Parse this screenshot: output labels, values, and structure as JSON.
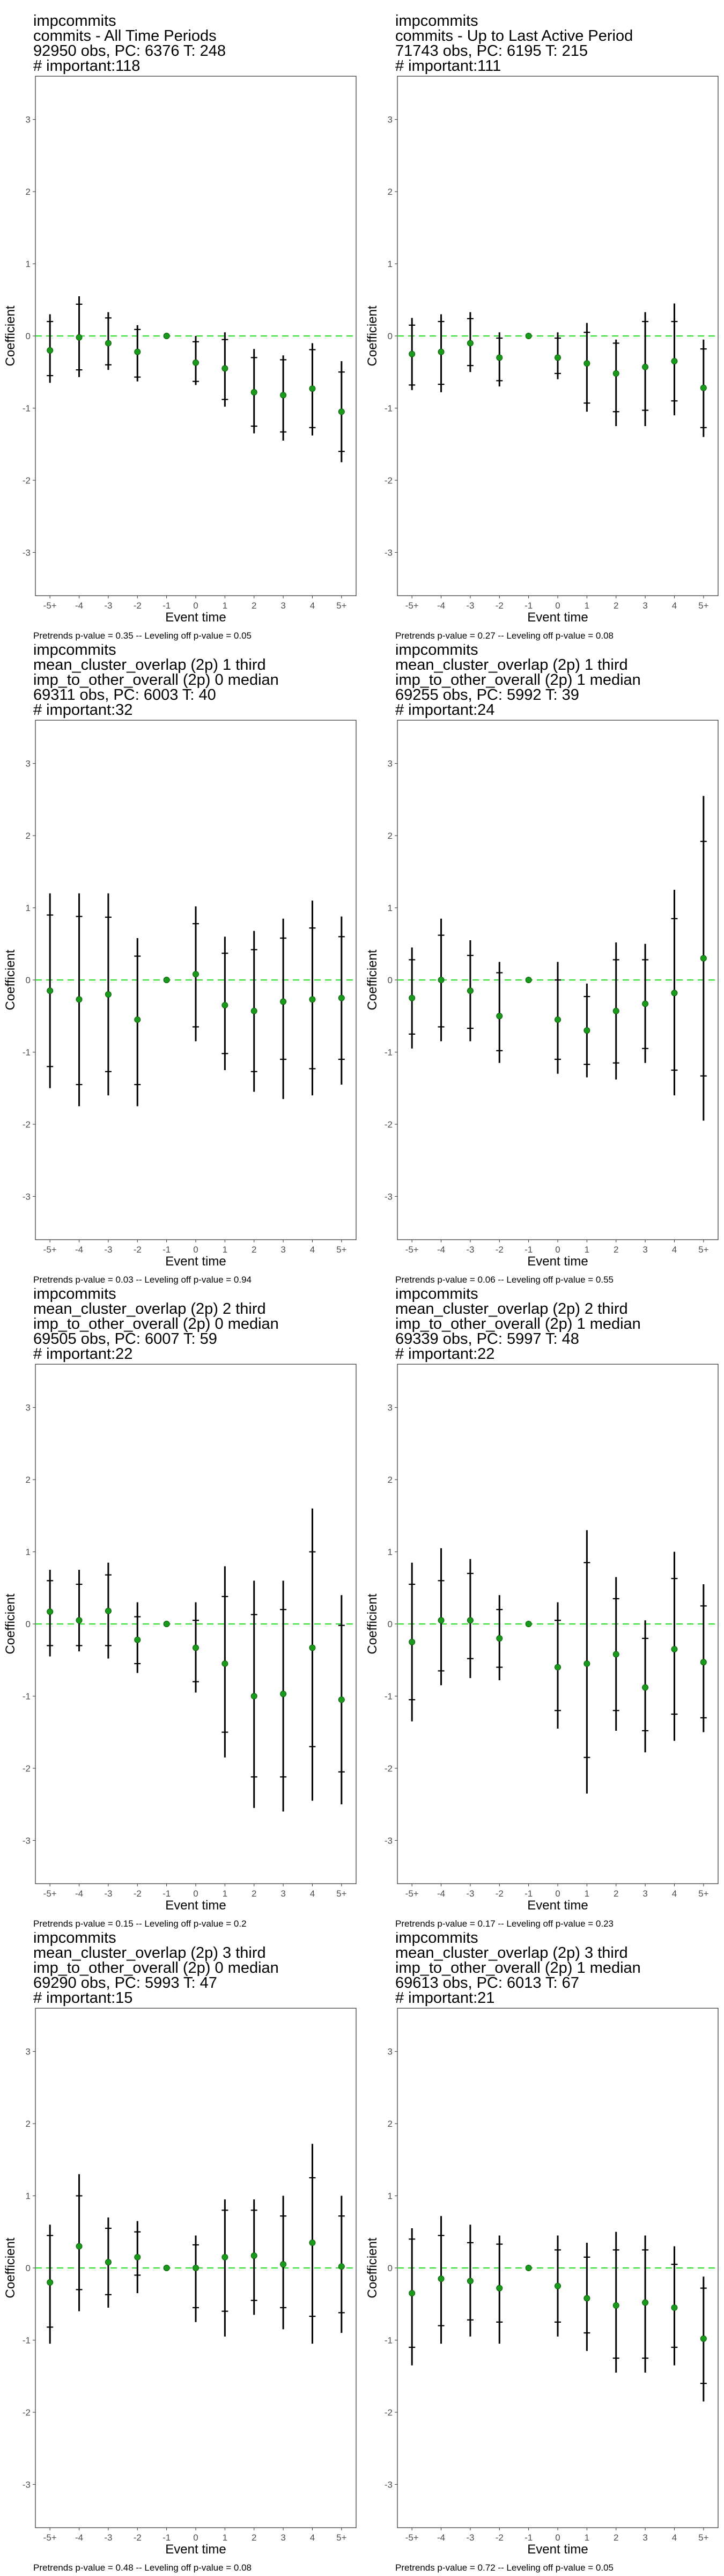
{
  "chart_data": [
    {
      "type": "scatter",
      "title_lines": [
        " impcommits",
        "commits - All Time Periods",
        "92950 obs, PC: 6376 T: 248",
        "# important:118"
      ],
      "categories": [
        "-5+",
        "-4",
        "-3",
        "-2",
        "-1",
        "0",
        "1",
        "2",
        "3",
        "4",
        "5+"
      ],
      "estimate": [
        -0.2,
        -0.02,
        -0.1,
        -0.22,
        0,
        -0.37,
        -0.45,
        -0.78,
        -0.82,
        -0.73,
        -1.05
      ],
      "ci_outer_low": [
        -0.65,
        -0.57,
        -0.47,
        -0.63,
        0,
        -0.68,
        -0.98,
        -1.35,
        -1.45,
        -1.38,
        -1.75
      ],
      "ci_outer_high": [
        0.3,
        0.55,
        0.33,
        0.15,
        0,
        0.0,
        0.05,
        -0.18,
        -0.27,
        -0.1,
        -0.35
      ],
      "ci_inner_low": [
        -0.55,
        -0.47,
        -0.4,
        -0.57,
        0,
        -0.63,
        -0.88,
        -1.25,
        -1.33,
        -1.27,
        -1.6
      ],
      "ci_inner_high": [
        0.2,
        0.44,
        0.25,
        0.09,
        0,
        -0.08,
        -0.05,
        -0.3,
        -0.33,
        -0.19,
        -0.5
      ],
      "xlabel": "Event time",
      "ylabel": "Coefficient",
      "ylim": [
        -3.6,
        3.6
      ],
      "yticks": [
        "3",
        "2",
        "1",
        "0",
        "-1",
        "-2",
        "-3"
      ],
      "reference_line": 0,
      "footnote": "Pretrends p-value = 0.35 -- Leveling off p-value = 0.05"
    },
    {
      "type": "scatter",
      "title_lines": [
        " impcommits",
        "commits - Up to Last Active Period",
        "71743 obs, PC: 6195 T: 215",
        "# important:111"
      ],
      "categories": [
        "-5+",
        "-4",
        "-3",
        "-2",
        "-1",
        "0",
        "1",
        "2",
        "3",
        "4",
        "5+"
      ],
      "estimate": [
        -0.25,
        -0.22,
        -0.1,
        -0.3,
        0,
        -0.3,
        -0.38,
        -0.52,
        -0.43,
        -0.35,
        -0.72
      ],
      "ci_outer_low": [
        -0.75,
        -0.78,
        -0.5,
        -0.7,
        0,
        -0.6,
        -1.05,
        -1.25,
        -1.25,
        -1.1,
        -1.4
      ],
      "ci_outer_high": [
        0.25,
        0.3,
        0.33,
        0.05,
        0,
        0.05,
        0.18,
        -0.05,
        0.33,
        0.45,
        -0.05
      ],
      "ci_inner_low": [
        -0.68,
        -0.67,
        -0.41,
        -0.62,
        0,
        -0.52,
        -0.93,
        -1.05,
        -1.03,
        -0.9,
        -1.27
      ],
      "ci_inner_high": [
        0.15,
        0.2,
        0.24,
        -0.03,
        0,
        -0.03,
        0.05,
        -0.1,
        0.2,
        0.2,
        -0.18
      ],
      "xlabel": "Event time",
      "ylabel": "Coefficient",
      "ylim": [
        -3.6,
        3.6
      ],
      "yticks": [
        "3",
        "2",
        "1",
        "0",
        "-1",
        "-2",
        "-3"
      ],
      "reference_line": 0,
      "footnote": "Pretrends p-value = 0.27 -- Leveling off p-value = 0.08"
    },
    {
      "type": "scatter",
      "title_lines": [
        " impcommits",
        "mean_cluster_overlap (2p) 1 third",
        "imp_to_other_overall (2p) 0 median",
        "69311 obs, PC: 6003 T: 40",
        "# important:32"
      ],
      "categories": [
        "-5+",
        "-4",
        "-3",
        "-2",
        "-1",
        "0",
        "1",
        "2",
        "3",
        "4",
        "5+"
      ],
      "estimate": [
        -0.15,
        -0.27,
        -0.2,
        -0.55,
        0,
        0.08,
        -0.35,
        -0.43,
        -0.3,
        -0.27,
        -0.25
      ],
      "ci_outer_low": [
        -1.5,
        -1.75,
        -1.6,
        -1.75,
        0,
        -0.85,
        -1.25,
        -1.55,
        -1.65,
        -1.6,
        -1.45
      ],
      "ci_outer_high": [
        1.2,
        1.2,
        1.2,
        0.58,
        0,
        1.02,
        0.6,
        0.68,
        0.85,
        1.1,
        0.88
      ],
      "ci_inner_low": [
        -1.2,
        -1.45,
        -1.27,
        -1.45,
        0,
        -0.65,
        -1.02,
        -1.27,
        -1.1,
        -1.23,
        -1.1
      ],
      "ci_inner_high": [
        0.9,
        0.88,
        0.87,
        0.33,
        0,
        0.78,
        0.37,
        0.42,
        0.58,
        0.72,
        0.6
      ],
      "xlabel": "Event time",
      "ylabel": "Coefficient",
      "ylim": [
        -3.6,
        3.6
      ],
      "yticks": [
        "3",
        "2",
        "1",
        "0",
        "-1",
        "-2",
        "-3"
      ],
      "reference_line": 0,
      "footnote": "Pretrends p-value = 0.03 -- Leveling off p-value = 0.94"
    },
    {
      "type": "scatter",
      "title_lines": [
        " impcommits",
        "mean_cluster_overlap (2p) 1 third",
        "imp_to_other_overall (2p) 1 median",
        "69255 obs, PC: 5992 T: 39",
        "# important:24"
      ],
      "categories": [
        "-5+",
        "-4",
        "-3",
        "-2",
        "-1",
        "0",
        "1",
        "2",
        "3",
        "4",
        "5+"
      ],
      "estimate": [
        -0.25,
        0.0,
        -0.15,
        -0.5,
        0,
        -0.55,
        -0.7,
        -0.43,
        -0.33,
        -0.18,
        0.3
      ],
      "ci_outer_low": [
        -0.95,
        -0.85,
        -0.85,
        -1.15,
        0,
        -1.3,
        -1.35,
        -1.38,
        -1.15,
        -1.6,
        -1.95
      ],
      "ci_outer_high": [
        0.45,
        0.85,
        0.55,
        0.25,
        0,
        0.25,
        -0.05,
        0.52,
        0.5,
        1.25,
        2.55
      ],
      "ci_inner_low": [
        -0.75,
        -0.65,
        -0.67,
        -0.98,
        0,
        -1.1,
        -1.17,
        -1.15,
        -0.95,
        -1.25,
        -1.33
      ],
      "ci_inner_high": [
        0.28,
        0.62,
        0.34,
        0.1,
        0,
        0.0,
        -0.23,
        0.28,
        0.28,
        0.85,
        1.92
      ],
      "xlabel": "Event time",
      "ylabel": "Coefficient",
      "ylim": [
        -3.6,
        3.6
      ],
      "yticks": [
        "3",
        "2",
        "1",
        "0",
        "-1",
        "-2",
        "-3"
      ],
      "reference_line": 0,
      "footnote": "Pretrends p-value = 0.06 -- Leveling off p-value = 0.55"
    },
    {
      "type": "scatter",
      "title_lines": [
        " impcommits",
        "mean_cluster_overlap (2p) 2 third",
        "imp_to_other_overall (2p) 0 median",
        "69505 obs, PC: 6007 T: 59",
        "# important:22"
      ],
      "categories": [
        "-5+",
        "-4",
        "-3",
        "-2",
        "-1",
        "0",
        "1",
        "2",
        "3",
        "4",
        "5+"
      ],
      "estimate": [
        0.17,
        0.05,
        0.18,
        -0.22,
        0,
        -0.33,
        -0.55,
        -1.0,
        -0.97,
        -0.33,
        -1.05
      ],
      "ci_outer_low": [
        -0.45,
        -0.38,
        -0.48,
        -0.68,
        0,
        -0.95,
        -1.85,
        -2.55,
        -2.6,
        -2.45,
        -2.5
      ],
      "ci_outer_high": [
        0.75,
        0.75,
        0.85,
        0.3,
        0,
        0.3,
        0.8,
        0.6,
        0.6,
        1.6,
        0.4
      ],
      "ci_inner_low": [
        -0.3,
        -0.3,
        -0.3,
        -0.55,
        0,
        -0.8,
        -1.5,
        -2.12,
        -2.12,
        -1.7,
        -2.05
      ],
      "ci_inner_high": [
        0.6,
        0.55,
        0.68,
        0.1,
        0,
        0.05,
        0.38,
        0.13,
        0.2,
        1.0,
        -0.02
      ],
      "xlabel": "Event time",
      "ylabel": "Coefficient",
      "ylim": [
        -3.6,
        3.6
      ],
      "yticks": [
        "3",
        "2",
        "1",
        "0",
        "-1",
        "-2",
        "-3"
      ],
      "reference_line": 0,
      "footnote": "Pretrends p-value = 0.15 -- Leveling off p-value = 0.2"
    },
    {
      "type": "scatter",
      "title_lines": [
        " impcommits",
        "mean_cluster_overlap (2p) 2 third",
        "imp_to_other_overall (2p) 1 median",
        "69339 obs, PC: 5997 T: 48",
        "# important:22"
      ],
      "categories": [
        "-5+",
        "-4",
        "-3",
        "-2",
        "-1",
        "0",
        "1",
        "2",
        "3",
        "4",
        "5+"
      ],
      "estimate": [
        -0.25,
        0.05,
        0.05,
        -0.2,
        0,
        -0.6,
        -0.55,
        -0.42,
        -0.88,
        -0.35,
        -0.53
      ],
      "ci_outer_low": [
        -1.35,
        -0.85,
        -0.75,
        -0.78,
        0,
        -1.45,
        -2.35,
        -1.48,
        -1.78,
        -1.62,
        -1.5
      ],
      "ci_outer_high": [
        0.85,
        1.05,
        0.9,
        0.4,
        0,
        0.3,
        1.3,
        0.65,
        0.05,
        1.0,
        0.55
      ],
      "ci_inner_low": [
        -1.05,
        -0.65,
        -0.48,
        -0.6,
        0,
        -1.2,
        -1.85,
        -1.2,
        -1.48,
        -1.25,
        -1.3
      ],
      "ci_inner_high": [
        0.55,
        0.6,
        0.7,
        0.2,
        0,
        0.05,
        0.85,
        0.35,
        -0.2,
        0.63,
        0.25
      ],
      "xlabel": "Event time",
      "ylabel": "Coefficient",
      "ylim": [
        -3.6,
        3.6
      ],
      "yticks": [
        "3",
        "2",
        "1",
        "0",
        "-1",
        "-2",
        "-3"
      ],
      "reference_line": 0,
      "footnote": "Pretrends p-value = 0.17 -- Leveling off p-value = 0.23"
    },
    {
      "type": "scatter",
      "title_lines": [
        " impcommits",
        "mean_cluster_overlap (2p) 3 third",
        "imp_to_other_overall (2p) 0 median",
        "69290 obs, PC: 5993 T: 47",
        "# important:15"
      ],
      "categories": [
        "-5+",
        "-4",
        "-3",
        "-2",
        "-1",
        "0",
        "1",
        "2",
        "3",
        "4",
        "5+"
      ],
      "estimate": [
        -0.2,
        0.3,
        0.08,
        0.15,
        0,
        0.0,
        0.15,
        0.17,
        0.05,
        0.35,
        0.02
      ],
      "ci_outer_low": [
        -1.05,
        -0.6,
        -0.55,
        -0.35,
        0,
        -0.75,
        -0.95,
        -0.65,
        -0.85,
        -1.05,
        -0.9
      ],
      "ci_outer_high": [
        0.6,
        1.3,
        0.7,
        0.65,
        0,
        0.45,
        0.95,
        0.95,
        1.0,
        1.72,
        1.0
      ],
      "ci_inner_low": [
        -0.82,
        -0.3,
        -0.37,
        -0.1,
        0,
        -0.55,
        -0.6,
        -0.45,
        -0.55,
        -0.67,
        -0.62
      ],
      "ci_inner_high": [
        0.45,
        1.0,
        0.55,
        0.5,
        0,
        0.32,
        0.8,
        0.8,
        0.72,
        1.25,
        0.72
      ],
      "xlabel": "Event time",
      "ylabel": "Coefficient",
      "ylim": [
        -3.6,
        3.6
      ],
      "yticks": [
        "3",
        "2",
        "1",
        "0",
        "-1",
        "-2",
        "-3"
      ],
      "reference_line": 0,
      "footnote": "Pretrends p-value = 0.48 -- Leveling off p-value = 0.08"
    },
    {
      "type": "scatter",
      "title_lines": [
        " impcommits",
        "mean_cluster_overlap (2p) 3 third",
        "imp_to_other_overall (2p) 1 median",
        "69613 obs, PC: 6013 T: 67",
        "# important:21"
      ],
      "categories": [
        "-5+",
        "-4",
        "-3",
        "-2",
        "-1",
        "0",
        "1",
        "2",
        "3",
        "4",
        "5+"
      ],
      "estimate": [
        -0.35,
        -0.15,
        -0.18,
        -0.28,
        0,
        -0.25,
        -0.42,
        -0.52,
        -0.48,
        -0.55,
        -0.98
      ],
      "ci_outer_low": [
        -1.35,
        -1.05,
        -0.95,
        -1.05,
        0,
        -0.95,
        -1.15,
        -1.45,
        -1.45,
        -1.35,
        -1.85
      ],
      "ci_outer_high": [
        0.55,
        0.72,
        0.6,
        0.45,
        0,
        0.45,
        0.35,
        0.5,
        0.45,
        0.3,
        -0.12
      ],
      "ci_inner_low": [
        -1.1,
        -0.8,
        -0.72,
        -0.75,
        0,
        -0.75,
        -0.9,
        -1.25,
        -1.25,
        -1.1,
        -1.6
      ],
      "ci_inner_high": [
        0.4,
        0.45,
        0.35,
        0.33,
        0,
        0.25,
        0.15,
        0.25,
        0.25,
        0.05,
        -0.28
      ],
      "xlabel": "Event time",
      "ylabel": "Coefficient",
      "ylim": [
        -3.6,
        3.6
      ],
      "yticks": [
        "3",
        "2",
        "1",
        "0",
        "-1",
        "-2",
        "-3"
      ],
      "reference_line": 0,
      "footnote": "Pretrends p-value = 0.72 -- Leveling off p-value = 0.05"
    }
  ]
}
